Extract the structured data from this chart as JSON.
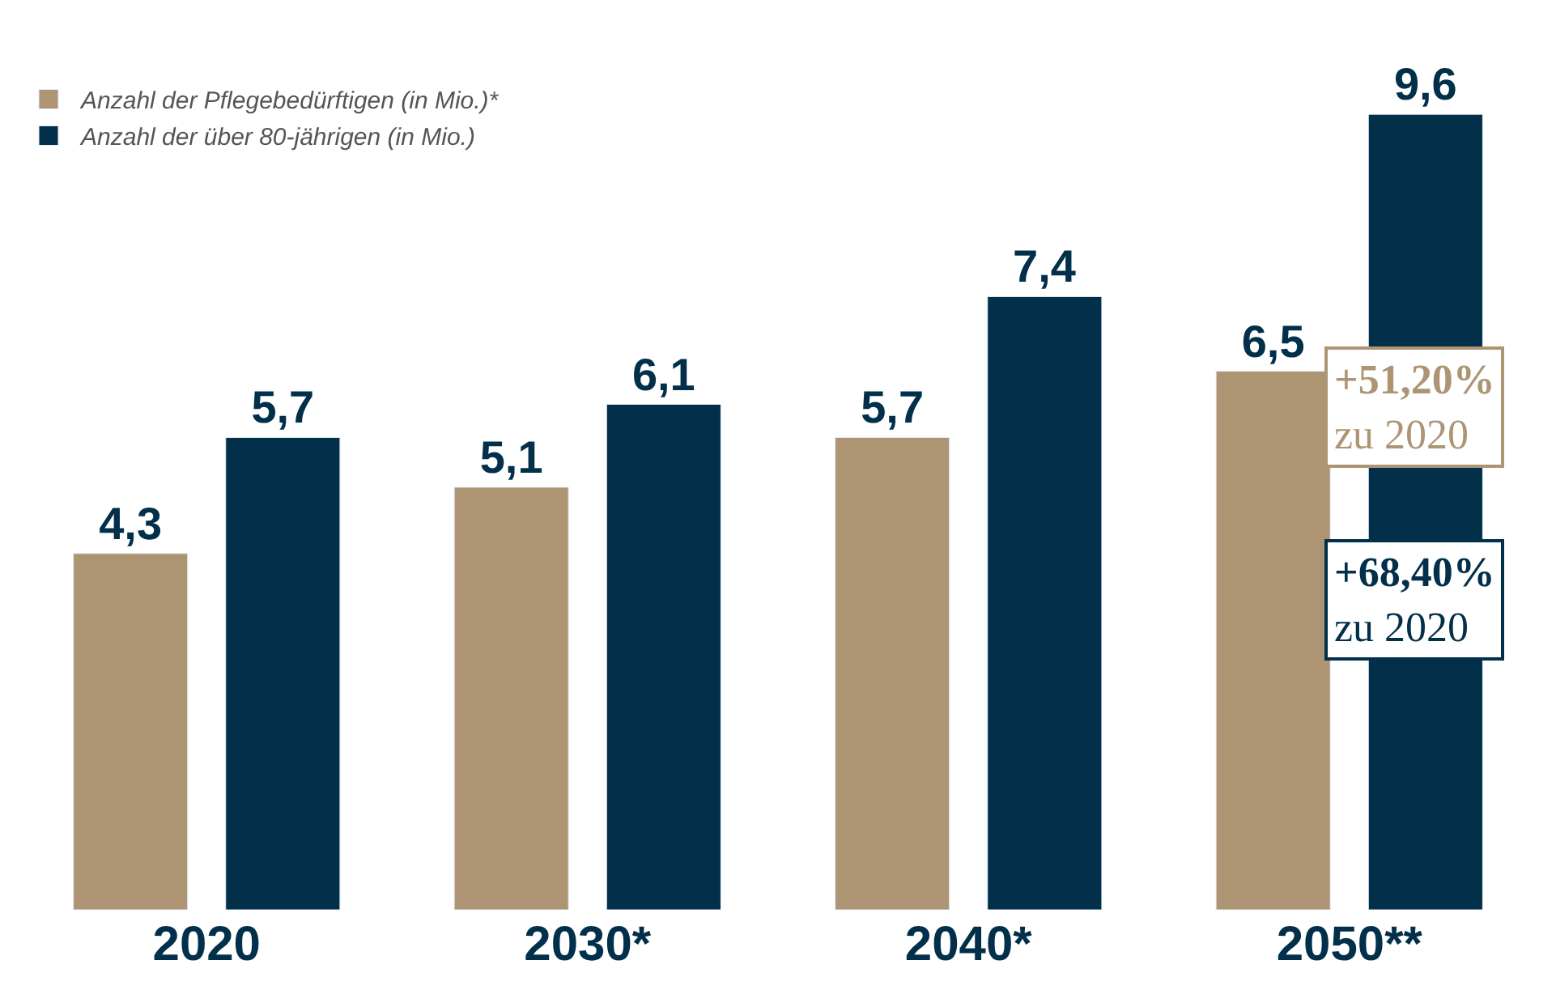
{
  "chart_data": {
    "type": "bar",
    "categories": [
      "2020",
      "2030*",
      "2040*",
      "2050**"
    ],
    "series": [
      {
        "name": "Anzahl der Pflegebedürftigen (in Mio.)*",
        "color": "#ad9574",
        "values": [
          4.3,
          5.1,
          5.7,
          6.5
        ],
        "value_labels": [
          "4,3",
          "5,1",
          "5,7",
          "6,5"
        ]
      },
      {
        "name": "Anzahl der über 80-jährigen (in Mio.)",
        "color": "#022f4a",
        "values": [
          5.7,
          6.1,
          7.4,
          9.6
        ],
        "value_labels": [
          "5,7",
          "6,1",
          "7,4",
          "9,6"
        ]
      }
    ],
    "annotations": [
      "+51,20%\nzu 2020",
      "+68,40%\nzu 2020"
    ],
    "legend": "top left"
  }
}
